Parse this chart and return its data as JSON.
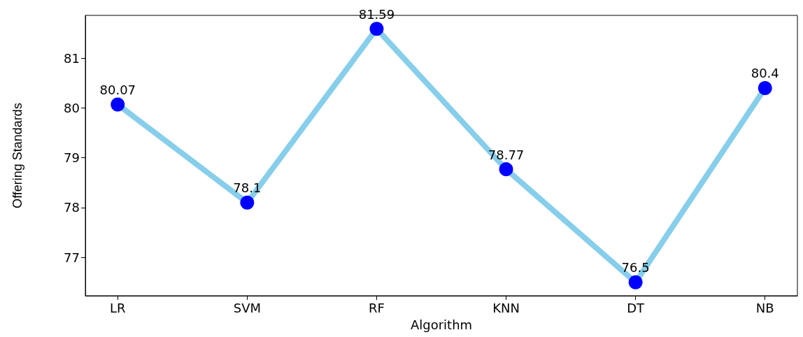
{
  "chart_data": {
    "type": "line",
    "xlabel": "Algorithm",
    "ylabel": "Offering Standards",
    "categories": [
      "LR",
      "SVM",
      "RF",
      "KNN",
      "DT",
      "NB"
    ],
    "series": [
      {
        "color": "#87ceeb",
        "values": [
          80.07,
          78.1,
          81.59,
          78.77,
          76.5,
          80.4
        ]
      }
    ],
    "marker": "circle",
    "data_labels": true,
    "ylim": [
      76.23,
      81.86
    ],
    "yticks": [
      77,
      78,
      79,
      80,
      81
    ],
    "grid": false
  }
}
